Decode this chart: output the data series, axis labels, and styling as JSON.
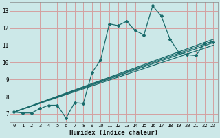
{
  "xlabel": "Humidex (Indice chaleur)",
  "bg_color": "#cce8e8",
  "grid_color": "#d4a0a0",
  "line_color": "#1a6b6b",
  "xlim": [
    -0.5,
    23.5
  ],
  "ylim": [
    6.5,
    13.5
  ],
  "xticks": [
    0,
    1,
    2,
    3,
    4,
    5,
    6,
    7,
    8,
    9,
    10,
    11,
    12,
    13,
    14,
    15,
    16,
    17,
    18,
    19,
    20,
    21,
    22,
    23
  ],
  "yticks": [
    7,
    8,
    9,
    10,
    11,
    12,
    13
  ],
  "main_x": [
    0,
    1,
    2,
    3,
    4,
    5,
    6,
    7,
    8,
    9,
    10,
    11,
    12,
    13,
    14,
    15,
    16,
    17,
    18,
    19,
    20,
    21,
    22,
    23
  ],
  "main_y": [
    7.1,
    7.05,
    7.05,
    7.3,
    7.5,
    7.5,
    6.75,
    7.65,
    7.6,
    9.4,
    10.15,
    12.25,
    12.15,
    12.4,
    11.85,
    11.6,
    13.3,
    12.7,
    11.35,
    10.6,
    10.45,
    10.4,
    11.1,
    11.2
  ],
  "lin_lines": [
    {
      "x0": 0,
      "y0": 7.1,
      "x1": 23,
      "y1": 11.0
    },
    {
      "x0": 0,
      "y0": 7.1,
      "x1": 23,
      "y1": 11.15
    },
    {
      "x0": 0,
      "y0": 7.1,
      "x1": 23,
      "y1": 11.25
    },
    {
      "x0": 0,
      "y0": 7.1,
      "x1": 23,
      "y1": 11.35
    }
  ]
}
